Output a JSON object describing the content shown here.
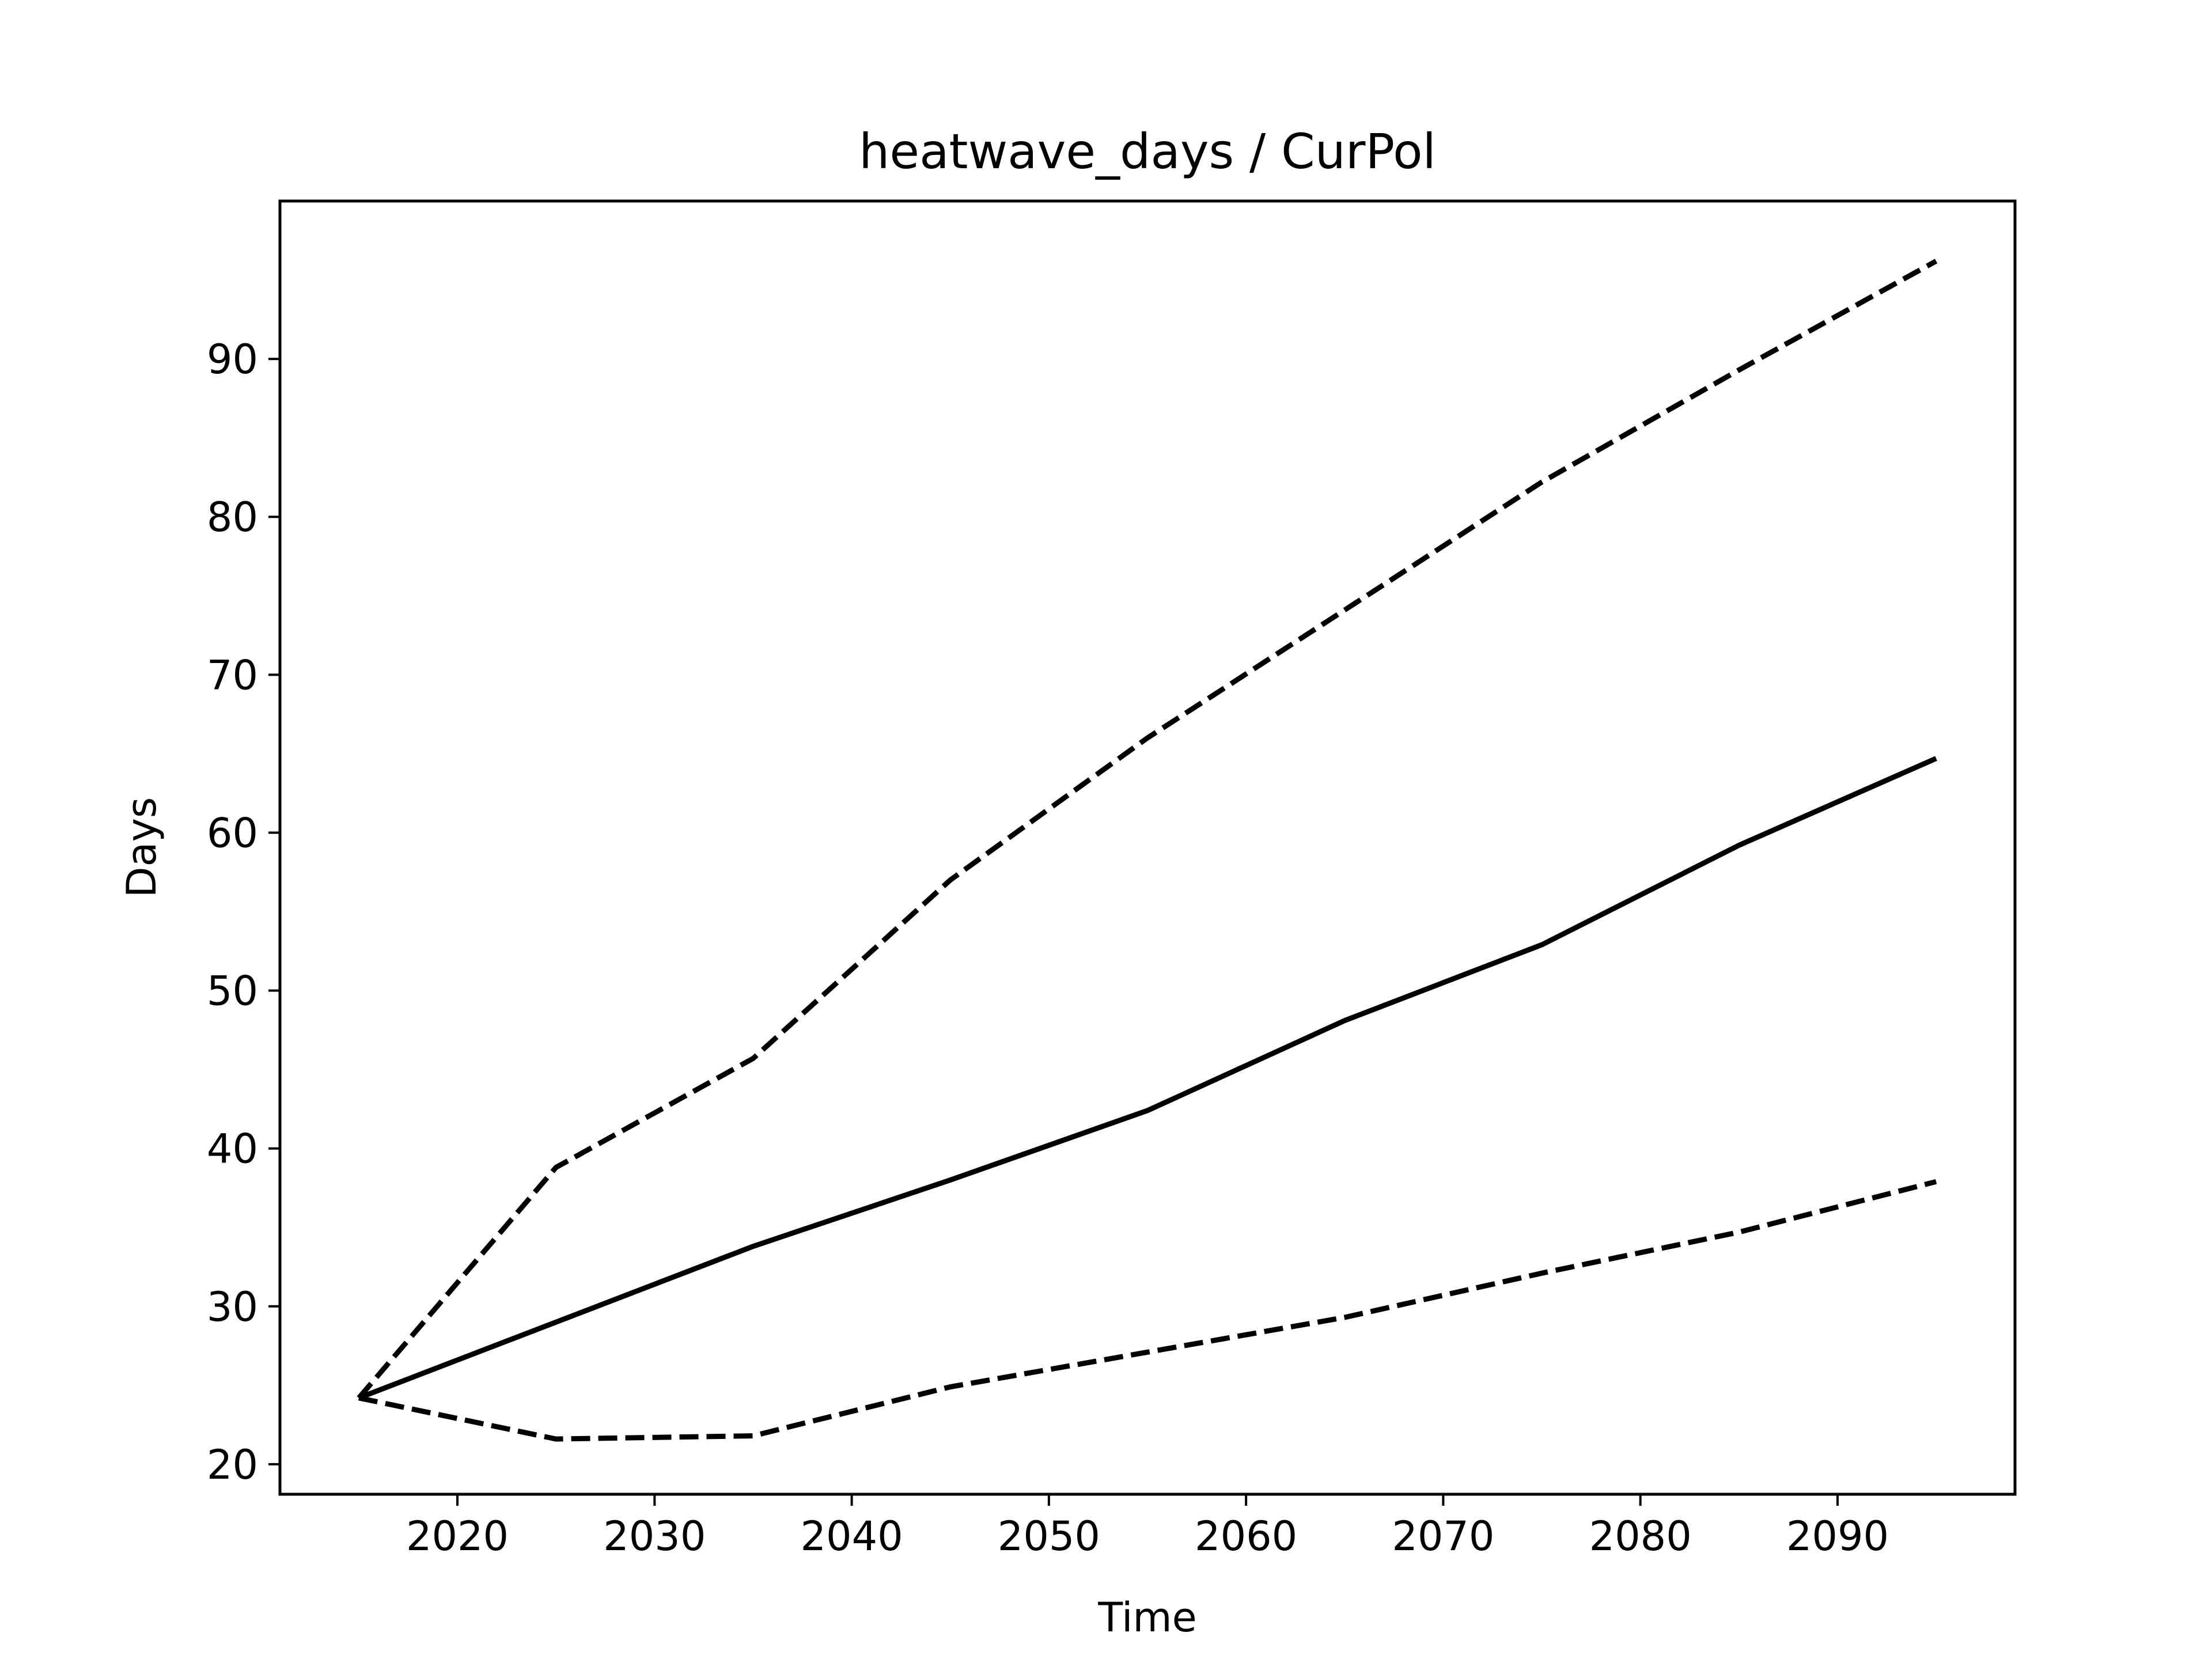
{
  "chart_data": {
    "type": "line",
    "title": "heatwave_days / CurPol",
    "xlabel": "Time",
    "ylabel": "Days",
    "xlim": [
      2011,
      2099
    ],
    "ylim": [
      18.1,
      100
    ],
    "grid": false,
    "xticks": [
      2020,
      2030,
      2040,
      2050,
      2060,
      2070,
      2080,
      2090
    ],
    "yticks": [
      20,
      30,
      40,
      50,
      60,
      70,
      80,
      90
    ],
    "x": [
      2015,
      2025,
      2035,
      2045,
      2055,
      2065,
      2075,
      2085,
      2095
    ],
    "series": [
      {
        "style": "solid",
        "color": "#000000",
        "values": [
          24.2,
          29.0,
          33.8,
          38.0,
          42.4,
          48.1,
          52.9,
          59.2,
          64.7
        ]
      },
      {
        "style": "dashed",
        "color": "#000000",
        "values": [
          24.2,
          38.8,
          45.7,
          57.0,
          66.0,
          74.1,
          82.2,
          89.3,
          96.2
        ]
      },
      {
        "style": "dashed",
        "color": "#000000",
        "values": [
          24.2,
          21.6,
          21.8,
          24.9,
          27.1,
          29.3,
          32.1,
          34.7,
          37.9
        ]
      }
    ]
  }
}
